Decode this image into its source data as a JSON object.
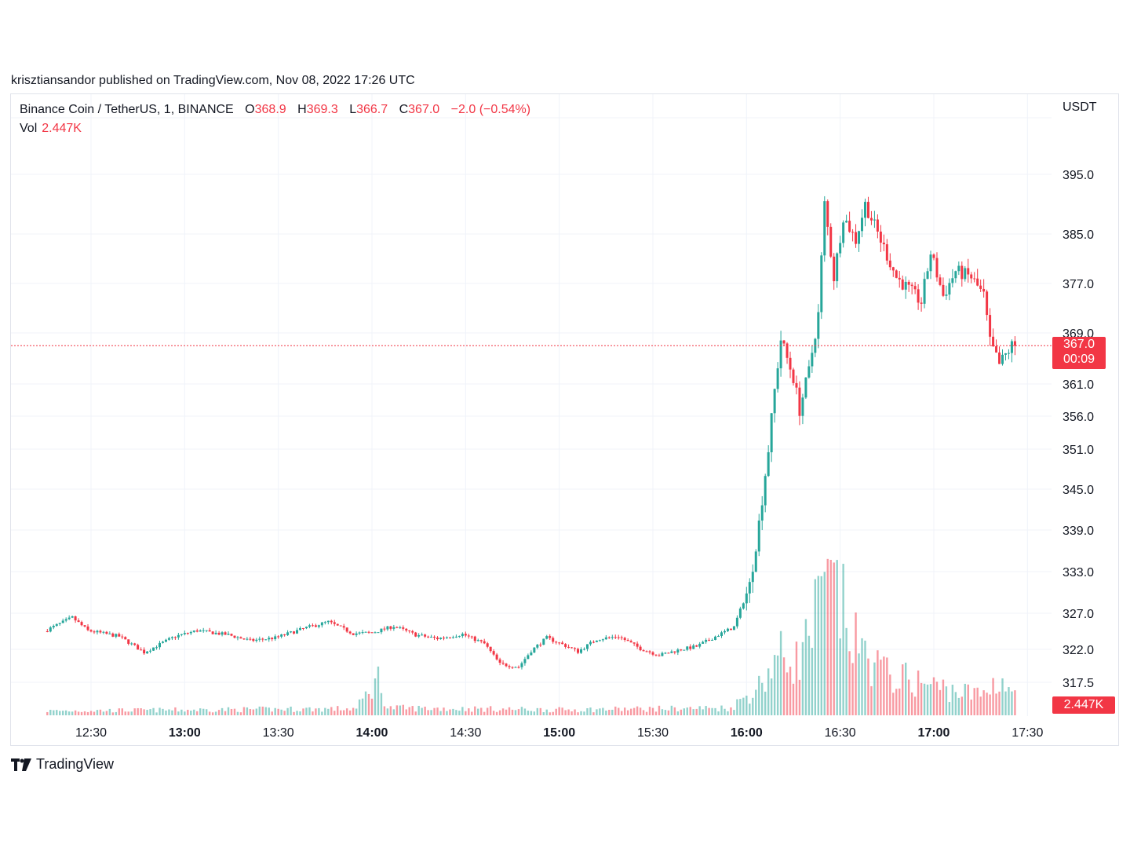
{
  "header": {
    "publisher_line": "krisztiansandor published on TradingView.com, Nov 08, 2022 17:26 UTC"
  },
  "legend": {
    "symbol": "Binance Coin / TetherUS, 1, BINANCE",
    "o_label": "O",
    "o_value": "368.9",
    "h_label": "H",
    "h_value": "369.3",
    "l_label": "L",
    "l_value": "366.7",
    "c_label": "C",
    "c_value": "367.0",
    "change": "−2.0 (−0.54%)",
    "vol_label": "Vol",
    "vol_value": "2.447K"
  },
  "axis": {
    "currency": "USDT",
    "price_badge_value": "367.0",
    "price_badge_countdown": "00:09",
    "volume_badge": "2.447K"
  },
  "footer": {
    "brand": "TradingView"
  },
  "colors": {
    "up": "#26a69a",
    "down": "#f23645",
    "grid": "#f0f3fa",
    "text": "#131722"
  },
  "chart_data": {
    "type": "candlestick",
    "title": "",
    "interval_minutes": 1,
    "last_price": 367.0,
    "y_ticks": [
      395.0,
      385.0,
      377.0,
      369.0,
      361.0,
      356.0,
      351.0,
      345.0,
      339.0,
      333.0,
      327.0,
      322.0,
      317.5
    ],
    "x_ticks": [
      {
        "label": "12:30",
        "bold": false
      },
      {
        "label": "13:00",
        "bold": true
      },
      {
        "label": "13:30",
        "bold": false
      },
      {
        "label": "14:00",
        "bold": true
      },
      {
        "label": "14:30",
        "bold": false
      },
      {
        "label": "15:00",
        "bold": true
      },
      {
        "label": "15:30",
        "bold": false
      },
      {
        "label": "16:00",
        "bold": true
      },
      {
        "label": "16:30",
        "bold": false
      },
      {
        "label": "17:00",
        "bold": true
      },
      {
        "label": "17:30",
        "bold": false
      }
    ],
    "x_range": [
      "12:16",
      "17:40"
    ],
    "price_path": [
      [
        "12:16",
        324.5
      ],
      [
        "12:25",
        326.4
      ],
      [
        "12:30",
        324.6
      ],
      [
        "12:40",
        323.8
      ],
      [
        "12:48",
        321.6
      ],
      [
        "12:58",
        323.8
      ],
      [
        "13:05",
        324.6
      ],
      [
        "13:15",
        324.0
      ],
      [
        "13:22",
        323.2
      ],
      [
        "13:30",
        323.6
      ],
      [
        "13:40",
        325.0
      ],
      [
        "13:47",
        325.8
      ],
      [
        "13:55",
        324.2
      ],
      [
        "14:01",
        324.3
      ],
      [
        "14:08",
        325.2
      ],
      [
        "14:15",
        324.0
      ],
      [
        "14:22",
        323.5
      ],
      [
        "14:30",
        324.1
      ],
      [
        "14:37",
        322.8
      ],
      [
        "14:42",
        320.0
      ],
      [
        "14:48",
        319.6
      ],
      [
        "14:52",
        321.8
      ],
      [
        "14:57",
        323.6
      ],
      [
        "15:03",
        322.5
      ],
      [
        "15:07",
        321.7
      ],
      [
        "15:13",
        323.4
      ],
      [
        "15:20",
        323.8
      ],
      [
        "15:27",
        322.1
      ],
      [
        "15:33",
        321.2
      ],
      [
        "15:40",
        322.0
      ],
      [
        "15:45",
        322.4
      ],
      [
        "15:52",
        324.0
      ],
      [
        "15:57",
        325.1
      ],
      [
        "16:02",
        331.0
      ],
      [
        "16:05",
        340.0
      ],
      [
        "16:08",
        351.0
      ],
      [
        "16:10",
        360.0
      ],
      [
        "16:12",
        368.0
      ],
      [
        "16:16",
        362.0
      ],
      [
        "16:18",
        357.0
      ],
      [
        "16:21",
        363.0
      ],
      [
        "16:24",
        372.0
      ],
      [
        "16:26",
        390.0
      ],
      [
        "16:29",
        378.0
      ],
      [
        "16:32",
        388.0
      ],
      [
        "16:36",
        384.0
      ],
      [
        "16:39",
        390.0
      ],
      [
        "16:44",
        384.0
      ],
      [
        "16:49",
        378.0
      ],
      [
        "16:53",
        376.0
      ],
      [
        "16:57",
        374.0
      ],
      [
        "17:00",
        382.0
      ],
      [
        "17:04",
        375.0
      ],
      [
        "17:08",
        379.0
      ],
      [
        "17:13",
        378.0
      ],
      [
        "17:17",
        375.0
      ],
      [
        "17:19",
        367.5
      ],
      [
        "17:22",
        364.0
      ],
      [
        "17:26",
        367.0
      ]
    ],
    "volume_path": [
      [
        "12:16",
        0.12
      ],
      [
        "13:55",
        0.18
      ],
      [
        "14:02",
        1.0
      ],
      [
        "14:05",
        0.2
      ],
      [
        "15:00",
        0.15
      ],
      [
        "15:55",
        0.2
      ],
      [
        "16:04",
        0.8
      ],
      [
        "16:10",
        1.6
      ],
      [
        "16:17",
        1.5
      ],
      [
        "16:27",
        3.7
      ],
      [
        "16:35",
        1.9
      ],
      [
        "16:45",
        1.1
      ],
      [
        "16:55",
        0.9
      ],
      [
        "17:05",
        0.7
      ],
      [
        "17:15",
        0.55
      ],
      [
        "17:21",
        1.0
      ],
      [
        "17:26",
        0.6
      ]
    ],
    "volume_max": 3.7
  }
}
